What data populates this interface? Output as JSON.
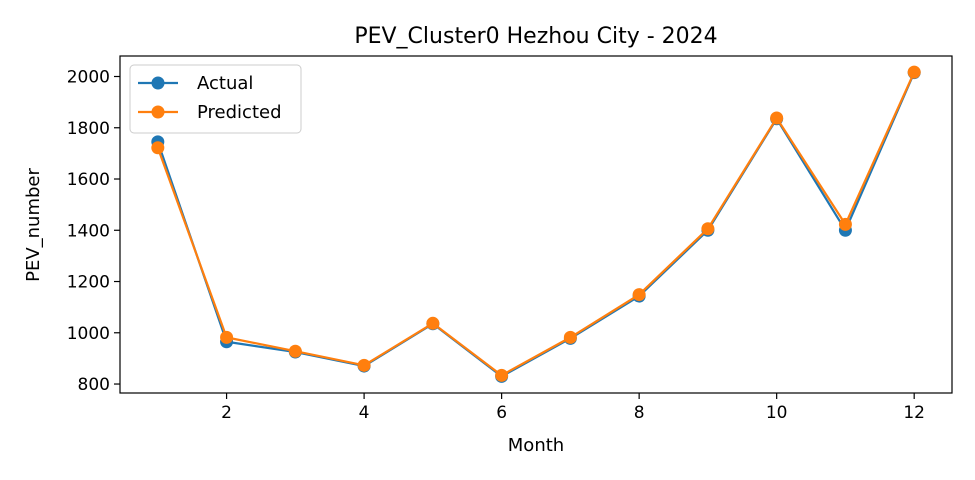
{
  "chart_data": {
    "type": "line",
    "title": "PEV_Cluster0 Hezhou City - 2024",
    "xlabel": "Month",
    "ylabel": "PEV_number",
    "x": [
      1,
      2,
      3,
      4,
      5,
      6,
      7,
      8,
      9,
      10,
      11,
      12
    ],
    "xlim": [
      0.45,
      12.55
    ],
    "ylim": [
      765,
      2080
    ],
    "xticks": [
      2,
      4,
      6,
      8,
      10,
      12
    ],
    "yticks": [
      800,
      1000,
      1200,
      1400,
      1600,
      1800,
      2000
    ],
    "grid": false,
    "legend_position": "upper-left",
    "series": [
      {
        "name": "Actual",
        "color": "#1f77b4",
        "values": [
          1745,
          965,
          925,
          870,
          1035,
          830,
          978,
          1143,
          1400,
          1835,
          1400,
          2015
        ]
      },
      {
        "name": "Predicted",
        "color": "#ff7f0e",
        "values": [
          1722,
          982,
          928,
          873,
          1037,
          834,
          982,
          1149,
          1406,
          1838,
          1423,
          2017
        ]
      }
    ]
  }
}
